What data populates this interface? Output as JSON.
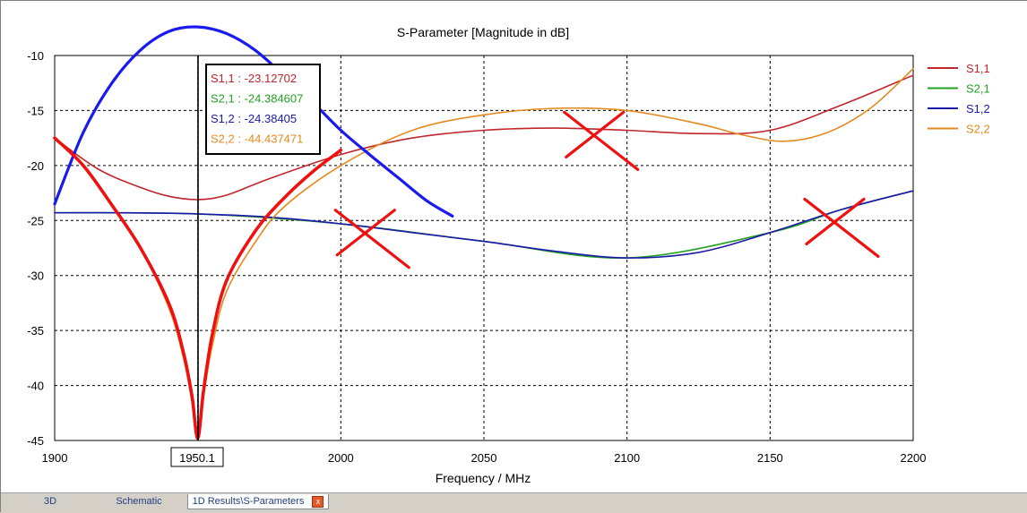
{
  "chart_data": {
    "type": "line",
    "title": "S-Parameter [Magnitude in dB]",
    "xlabel": "Frequency / MHz",
    "ylabel": "",
    "xlim": [
      1900,
      2200
    ],
    "ylim": [
      -45,
      -10
    ],
    "x_ticks": [
      1900,
      1950,
      2000,
      2050,
      2100,
      2150,
      2200
    ],
    "y_ticks": [
      -10,
      -15,
      -20,
      -25,
      -30,
      -35,
      -40,
      -45
    ],
    "grid": true,
    "legend_position": "right",
    "cursor": {
      "x": 1950.1,
      "label": "1950.1"
    },
    "readout": [
      {
        "text": "S1,1 : -23.12702",
        "color": "#c0262b"
      },
      {
        "text": "S2,1 : -24.384607",
        "color": "#22a022"
      },
      {
        "text": "S1,2 : -24.38405",
        "color": "#1a1aaa"
      },
      {
        "text": "S2,2 : -44.437471",
        "color": "#e38a1f"
      }
    ],
    "series": [
      {
        "name": "S1,1",
        "color": "#c0262b",
        "width": 1.6,
        "x": [
          1900,
          1915,
          1930,
          1940,
          1950,
          1960,
          1975,
          2000,
          2025,
          2050,
          2075,
          2100,
          2125,
          2150,
          2175,
          2200
        ],
        "y": [
          -17.5,
          -20.3,
          -22.0,
          -22.8,
          -23.1,
          -22.7,
          -21.2,
          -19.0,
          -17.5,
          -16.8,
          -16.6,
          -16.8,
          -17.1,
          -16.8,
          -14.5,
          -11.8
        ]
      },
      {
        "name": "S2,1",
        "color": "#22a022",
        "width": 1.6,
        "x": [
          1900,
          1950,
          2000,
          2050,
          2100,
          2150,
          2175,
          2200
        ],
        "y": [
          -24.3,
          -24.4,
          -25.3,
          -26.9,
          -28.4,
          -26.1,
          -24.0,
          -22.3
        ]
      },
      {
        "name": "S1,2",
        "color": "#1a1aaa",
        "width": 1.6,
        "x": [
          1900,
          1925,
          1950,
          1975,
          2000,
          2025,
          2050,
          2075,
          2100,
          2125,
          2150,
          2175,
          2200
        ],
        "y": [
          -24.3,
          -24.3,
          -24.4,
          -24.7,
          -25.3,
          -26.1,
          -26.9,
          -27.8,
          -28.4,
          -27.9,
          -26.1,
          -24.0,
          -22.3
        ]
      },
      {
        "name": "S2,2",
        "color": "#e38a1f",
        "width": 1.6,
        "x": [
          1900,
          1910,
          1920,
          1930,
          1940,
          1945,
          1948,
          1950,
          1952,
          1955,
          1960,
          1970,
          1980,
          2000,
          2025,
          2050,
          2075,
          2100,
          2125,
          2140,
          2155,
          2170,
          2185,
          2200
        ],
        "y": [
          -17.4,
          -20.0,
          -23.5,
          -27.5,
          -33.0,
          -37.5,
          -41.5,
          -44.4,
          -41.0,
          -36.5,
          -31.5,
          -27.0,
          -23.8,
          -20.0,
          -16.8,
          -15.4,
          -14.8,
          -15.0,
          -16.2,
          -17.2,
          -17.8,
          -17.0,
          -14.8,
          -11.2
        ]
      },
      {
        "name": "",
        "color": "#1a1aee",
        "width": 3.2,
        "x": [
          1900,
          1910,
          1920,
          1930,
          1940,
          1950,
          1960,
          1970,
          1980,
          1990,
          2000,
          2010,
          2020,
          2030,
          2039
        ],
        "y": [
          -23.5,
          -17.0,
          -12.5,
          -9.5,
          -7.8,
          -7.4,
          -8.0,
          -9.5,
          -11.8,
          -14.2,
          -16.8,
          -19.0,
          -21.1,
          -23.2,
          -24.6
        ]
      },
      {
        "name": "",
        "color": "#ee1111",
        "width": 3.6,
        "x": [
          1900,
          1910,
          1920,
          1930,
          1940,
          1945,
          1948,
          1950,
          1952,
          1955,
          1960,
          1970,
          1980,
          1990,
          2000
        ],
        "y": [
          -17.5,
          -20.0,
          -23.6,
          -27.5,
          -32.6,
          -37.0,
          -41.0,
          -44.8,
          -40.5,
          -35.5,
          -30.5,
          -26.0,
          -23.0,
          -20.6,
          -18.6
        ]
      }
    ],
    "cross_marks": [
      {
        "x": 2010,
        "y": -26.5
      },
      {
        "x": 2090,
        "y": -17.6
      },
      {
        "x": 2174,
        "y": -25.5
      }
    ]
  },
  "tabs": [
    {
      "label": "3D"
    },
    {
      "label": "Schematic"
    },
    {
      "label": "1D Results\\S-Parameters"
    }
  ],
  "tab_close_glyph": "x"
}
